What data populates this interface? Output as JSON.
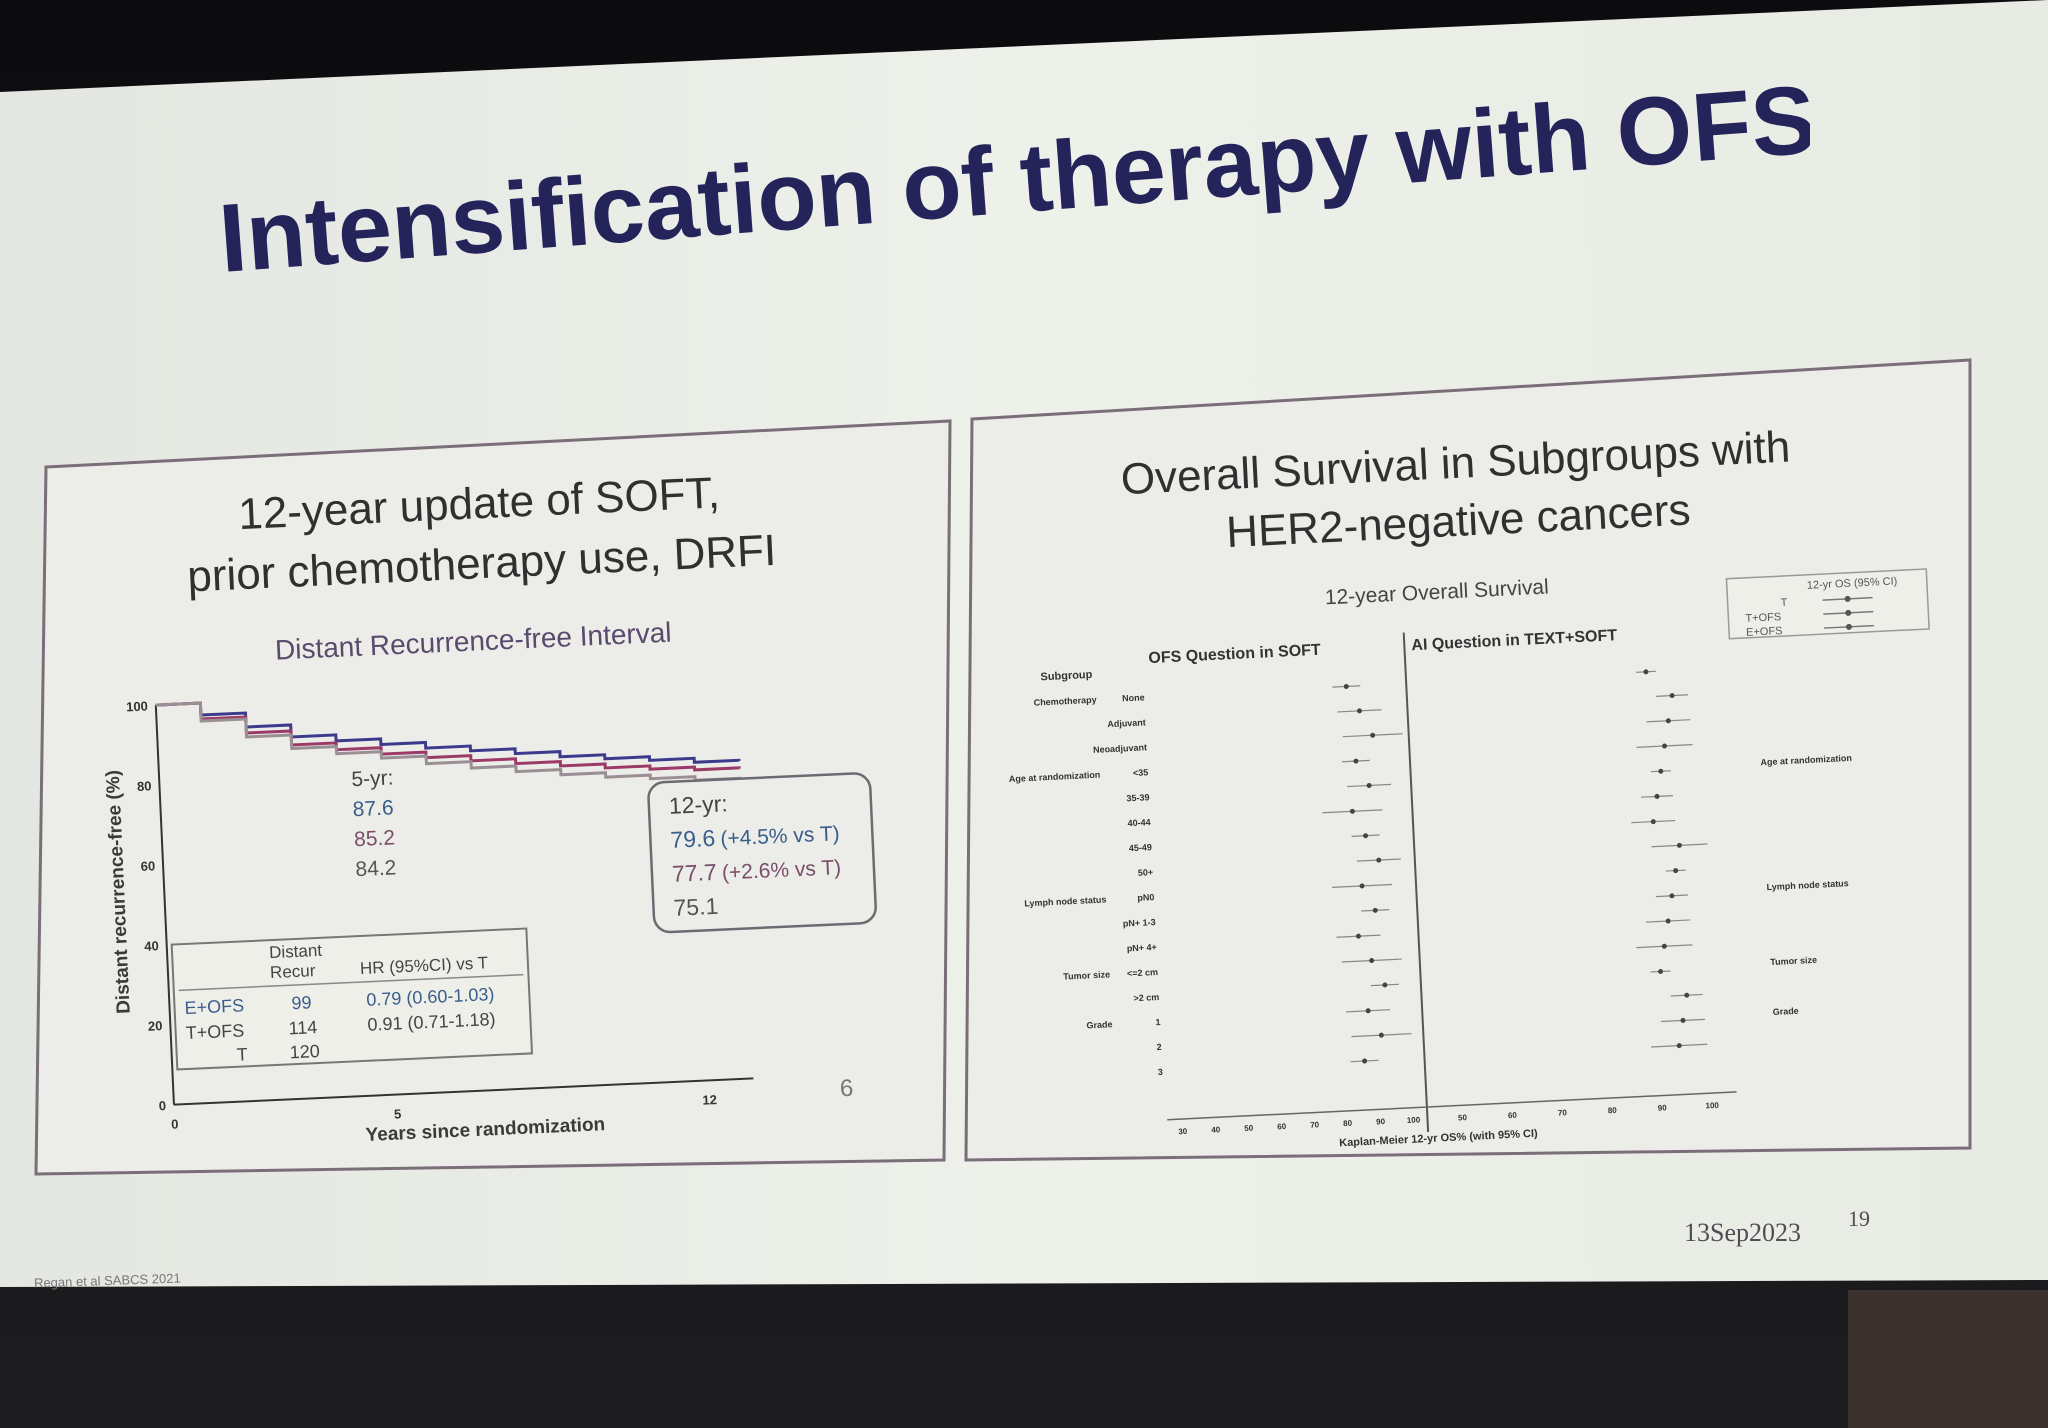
{
  "slide": {
    "title": "Intensification of therapy with OFS",
    "date": "13Sep2023",
    "slide_number": "19",
    "citation": "Regan et al SABCS 2021"
  },
  "left_panel": {
    "title_line1": "12-year update of SOFT,",
    "title_line2": "prior chemotherapy use, DRFI",
    "chart_title": "Distant Recurrence-free Interval",
    "ylabel": "Distant recurrence-free (%)",
    "xlabel": "Years since randomization",
    "page_mark": "6",
    "five_year_heading": "5-yr:",
    "five_year_values": [
      "87.6",
      "85.2",
      "84.2"
    ],
    "twelve_year_heading": "12-yr:",
    "twelve_year_rows": [
      {
        "value": "79.6",
        "note": "(+4.5% vs T)"
      },
      {
        "value": "77.7",
        "note": "(+2.6% vs T)"
      },
      {
        "value": "75.1",
        "note": ""
      }
    ],
    "table": {
      "header_col1": "Distant",
      "header_col1b": "Recur",
      "header_col2": "HR (95%CI) vs T",
      "rows": [
        {
          "arm": "E+OFS",
          "events": "99",
          "hr": "0.79 (0.60-1.03)"
        },
        {
          "arm": "T+OFS",
          "events": "114",
          "hr": "0.91 (0.71-1.18)"
        },
        {
          "arm": "T",
          "events": "120",
          "hr": ""
        }
      ]
    },
    "colors": {
      "eofs": "#3b3a8c",
      "tofs": "#9b3a66",
      "t": "#9a8f94",
      "text_blue": "#3a5e8a",
      "text_mauve": "#7a4d6a"
    }
  },
  "chart_data": {
    "type": "line",
    "title": "Distant Recurrence-free Interval",
    "xlabel": "Years since randomization",
    "ylabel": "Distant recurrence-free (%)",
    "xlim": [
      0,
      13
    ],
    "ylim": [
      0,
      100
    ],
    "x_ticks": [
      "0",
      "5",
      "12"
    ],
    "y_ticks": [
      "0",
      "20",
      "40",
      "60",
      "80",
      "100"
    ],
    "series": [
      {
        "name": "E+OFS",
        "color": "#3b3a8c",
        "x": [
          0,
          1,
          2,
          3,
          4,
          5,
          6,
          7,
          8,
          9,
          10,
          11,
          12,
          13
        ],
        "y": [
          100,
          97,
          93.5,
          90.5,
          89,
          87.6,
          86.2,
          85,
          83.8,
          82.5,
          81.5,
          80.6,
          79.6,
          79.4
        ]
      },
      {
        "name": "T+OFS",
        "color": "#9b3a66",
        "x": [
          0,
          1,
          2,
          3,
          4,
          5,
          6,
          7,
          8,
          9,
          10,
          11,
          12,
          13
        ],
        "y": [
          100,
          96,
          92,
          88.5,
          86.8,
          85.2,
          83.8,
          82.5,
          81.3,
          80.2,
          79.2,
          78.4,
          77.7,
          77.5
        ]
      },
      {
        "name": "T",
        "color": "#9a8f94",
        "x": [
          0,
          1,
          2,
          3,
          4,
          5,
          6,
          7,
          8,
          9,
          10,
          11,
          12,
          13
        ],
        "y": [
          100,
          95.5,
          91,
          87.6,
          85.8,
          84.2,
          82.3,
          80.7,
          79.3,
          78.0,
          76.9,
          76.0,
          75.1,
          74.8
        ]
      }
    ]
  },
  "right_panel": {
    "title_line1": "Overall Survival in Subgroups with",
    "title_line2": "HER2-negative cancers",
    "subtitle": "12-year Overall Survival",
    "col_left": "OFS Question in SOFT",
    "col_right": "AI Question in TEXT+SOFT",
    "row_header": "Subgroup",
    "xlabel": "Kaplan-Meier 12-yr OS% (with 95% CI)",
    "legend_title": "12-yr OS (95% CI)",
    "legend_items": [
      "T",
      "T+OFS",
      "E+OFS"
    ],
    "groups": [
      {
        "label": "Chemotherapy",
        "right_label": ""
      },
      {
        "label": "Age at randomization",
        "right_label": "Age at randomization"
      },
      {
        "label": "Lymph node status",
        "right_label": "Lymph node status"
      },
      {
        "label": "Tumor size",
        "right_label": "Tumor size"
      },
      {
        "label": "Grade",
        "right_label": "Grade"
      }
    ],
    "rows": [
      "None",
      "Adjuvant",
      "Neoadjuvant",
      "<35",
      "35-39",
      "40-44",
      "45-49",
      "50+",
      "pN0",
      "pN+ 1-3",
      "pN+ 4+",
      "<=2 cm",
      ">2 cm",
      "1",
      "2",
      "3"
    ],
    "x_ticks_left": [
      "30",
      "40",
      "50",
      "60",
      "70",
      "80",
      "90",
      "100"
    ],
    "x_ticks_right": [
      "50",
      "60",
      "70",
      "80",
      "90",
      "100"
    ]
  }
}
